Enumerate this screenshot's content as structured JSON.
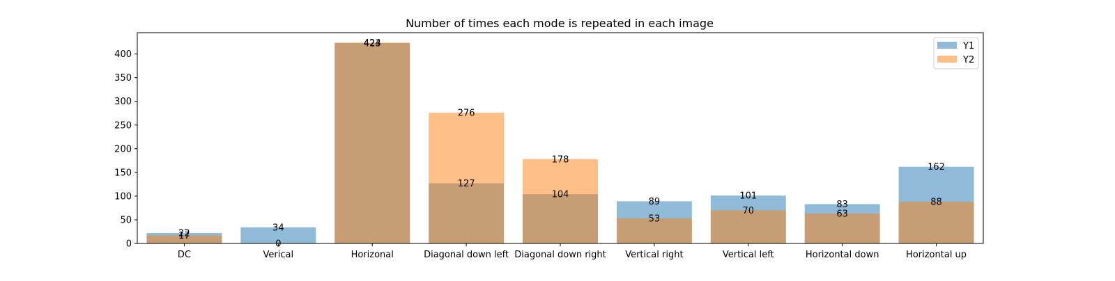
{
  "chart_data": {
    "type": "bar",
    "title": "Number of times each mode is repeated in each image",
    "xlabel": "",
    "ylabel": "",
    "categories": [
      "DC",
      "Verical",
      "Horizonal",
      "Diagonal down left",
      "Diagonal down right",
      "Vertical right",
      "Vertical left",
      "Horizontal down",
      "Horizontal up"
    ],
    "series": [
      {
        "name": "Y1",
        "color": "#1f77b4",
        "values": [
          22,
          34,
          423,
          127,
          104,
          89,
          101,
          83,
          162
        ]
      },
      {
        "name": "Y2",
        "color": "#ff7f0e",
        "values": [
          17,
          0,
          424,
          276,
          178,
          53,
          70,
          63,
          88
        ]
      }
    ],
    "ylim": [
      0,
      445
    ],
    "yticks": [
      0,
      50,
      100,
      150,
      200,
      250,
      300,
      350,
      400
    ],
    "bar_alpha": 0.5,
    "grid": false,
    "legend_position": "top-right"
  }
}
